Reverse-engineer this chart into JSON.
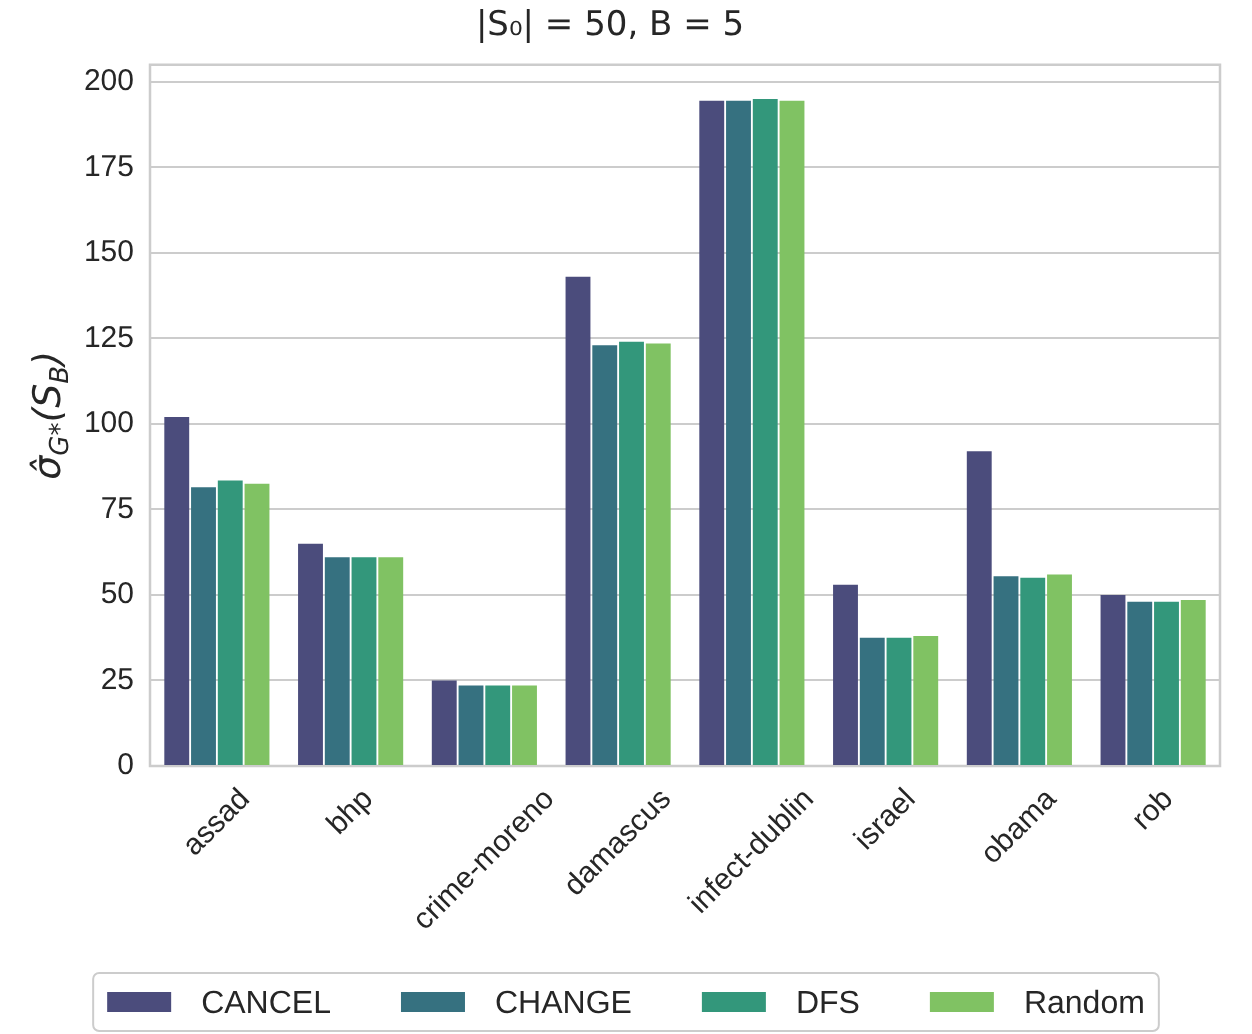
{
  "chart_data": {
    "type": "bar",
    "title": "|S₀| = 50, B = 5",
    "ylabel": "σ̂$_{G*}$(S$_{B}$)",
    "categories": [
      "assad",
      "bhp",
      "crime-moreno",
      "damascus",
      "infect-dublin",
      "israel",
      "obama",
      "rob"
    ],
    "series": [
      {
        "name": "CANCEL",
        "color": "#4b4c7c",
        "values": [
          102,
          65,
          25,
          143,
          194.5,
          53,
          92,
          50
        ]
      },
      {
        "name": "CHANGE",
        "color": "#367180",
        "values": [
          81.5,
          61,
          23.5,
          123,
          194.5,
          37.5,
          55.5,
          48
        ]
      },
      {
        "name": "DFS",
        "color": "#33977b",
        "values": [
          83.5,
          61,
          23.5,
          124,
          195,
          37.5,
          55,
          48
        ]
      },
      {
        "name": "Random",
        "color": "#80c263",
        "values": [
          82.5,
          61,
          23.5,
          123.5,
          194.5,
          38,
          56,
          48.5
        ]
      }
    ],
    "ylim": [
      0,
      205
    ],
    "yticks": [
      0,
      25,
      50,
      75,
      100,
      125,
      150,
      175,
      200
    ],
    "grid": "y",
    "legend": "bottom"
  }
}
